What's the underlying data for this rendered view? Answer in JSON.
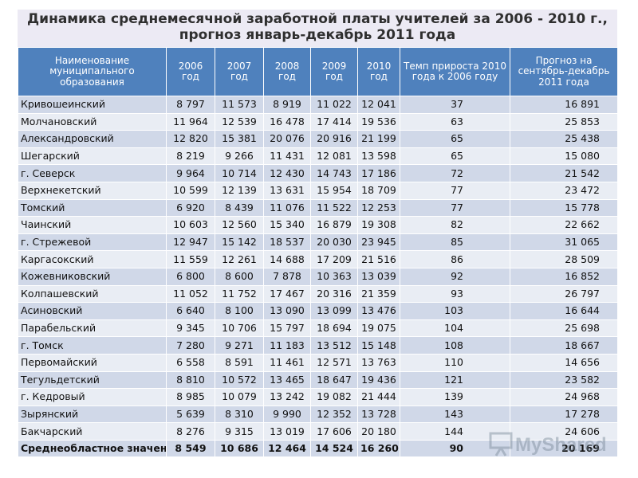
{
  "title": "Динамика среднемесячной  заработной платы учителей  за 2006 - 2010 г., прогноз январь-декабрь 2011 года",
  "headers": [
    "Наименование муниципального образования",
    "2006 год",
    "2007 год",
    "2008 год",
    "2009 год",
    "2010 год",
    "Темп прироста 2010 года к 2006 году",
    "Прогноз на сентябрь-декабрь 2011 года"
  ],
  "rows": [
    [
      "Кривошеинский",
      "8 797",
      "11 573",
      "8 919",
      "11 022",
      "12 041",
      "37",
      "16 891"
    ],
    [
      "Молчановский",
      "11 964",
      "12 539",
      "16 478",
      "17 414",
      "19 536",
      "63",
      "25 853"
    ],
    [
      "Александровский",
      "12 820",
      "15 381",
      "20 076",
      "20 916",
      "21 199",
      "65",
      "25 438"
    ],
    [
      "Шегарский",
      "8 219",
      "9 266",
      "11 431",
      "12 081",
      "13 598",
      "65",
      "15 080"
    ],
    [
      "г. Северск",
      "9 964",
      "10 714",
      "12 430",
      "14 743",
      "17 186",
      "72",
      "21 542"
    ],
    [
      "Верхнекетский",
      "10 599",
      "12 139",
      "13 631",
      "15 954",
      "18 709",
      "77",
      "23 472"
    ],
    [
      "Томский",
      "6 920",
      "8 439",
      "11 076",
      "11 522",
      "12 253",
      "77",
      "15 778"
    ],
    [
      "Чаинский",
      "10 603",
      "12 560",
      "15 340",
      "16 879",
      "19 308",
      "82",
      "22 662"
    ],
    [
      "г. Стрежевой",
      "12 947",
      "15 142",
      "18 537",
      "20 030",
      "23 945",
      "85",
      "31 065"
    ],
    [
      "Каргасокский",
      "11 559",
      "12 261",
      "14 688",
      "17 209",
      "21 516",
      "86",
      "28 509"
    ],
    [
      "Кожевниковский",
      "6 800",
      "8 600",
      "7 878",
      "10 363",
      "13 039",
      "92",
      "16 852"
    ],
    [
      "Колпашевский",
      "11 052",
      "11 752",
      "17 467",
      "20 316",
      "21 359",
      "93",
      "26 797"
    ],
    [
      "Асиновский",
      "6 640",
      "8 100",
      "13 090",
      "13 099",
      "13 476",
      "103",
      "16 644"
    ],
    [
      "Парабельский",
      "9 345",
      "10 706",
      "15 797",
      "18 694",
      "19 075",
      "104",
      "25 698"
    ],
    [
      "г. Томск",
      "7 280",
      "9 271",
      "11 183",
      "13 512",
      "15 148",
      "108",
      "18 667"
    ],
    [
      "Первомайский",
      "6 558",
      "8 591",
      "11 461",
      "12 571",
      "13 763",
      "110",
      "14 656"
    ],
    [
      "Тегульдетский",
      "8 810",
      "10 572",
      "13 465",
      "18 647",
      "19 436",
      "121",
      "23 582"
    ],
    [
      "г. Кедровый",
      "8 985",
      "10 079",
      "13 242",
      "19 082",
      "21 444",
      "139",
      "24 968"
    ],
    [
      "Зырянский",
      "5 639",
      "8 310",
      "9 990",
      "12 352",
      "13 728",
      "143",
      "17 278"
    ],
    [
      "Бакчарский",
      "8 276",
      "9 315",
      "13 019",
      "17 606",
      "20 180",
      "144",
      "24 606"
    ]
  ],
  "total": [
    "Среднеобластное значение",
    "8 549",
    "10 686",
    "12 464",
    "14 524",
    "16 260",
    "90",
    "20 169"
  ],
  "watermark": "MyShared"
}
